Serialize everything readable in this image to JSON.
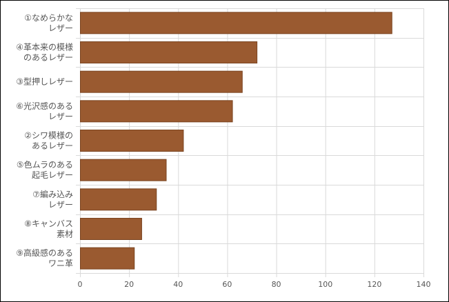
{
  "colors": {
    "bar_fill": "#9a5a30",
    "bar_stroke": "#7a4420",
    "grid": "#d9d9d9",
    "text": "#555555",
    "frame": "#000000"
  },
  "chart_data": {
    "type": "bar",
    "orientation": "horizontal",
    "title": "",
    "xlabel": "",
    "ylabel": "",
    "categories": [
      [
        "①なめらかな",
        "レザー"
      ],
      [
        "④革本来の模様",
        "のあるレザー"
      ],
      [
        "③型押しレザー"
      ],
      [
        "⑥光沢感のある",
        "レザー"
      ],
      [
        "②シワ模様の",
        "あるレザー"
      ],
      [
        "⑤色ムラのある",
        "起毛レザー"
      ],
      [
        "⑦編み込み",
        "レザー"
      ],
      [
        "⑧キャンバス",
        "素材"
      ],
      [
        "⑨高級感のある",
        "ワニ革"
      ]
    ],
    "values": [
      127,
      72,
      66,
      62,
      42,
      35,
      31,
      25,
      22
    ],
    "xlim": [
      0,
      140
    ],
    "xticks": [
      "0",
      "20",
      "40",
      "60",
      "80",
      "100",
      "120",
      "140"
    ],
    "grid": true,
    "legend": "none"
  }
}
